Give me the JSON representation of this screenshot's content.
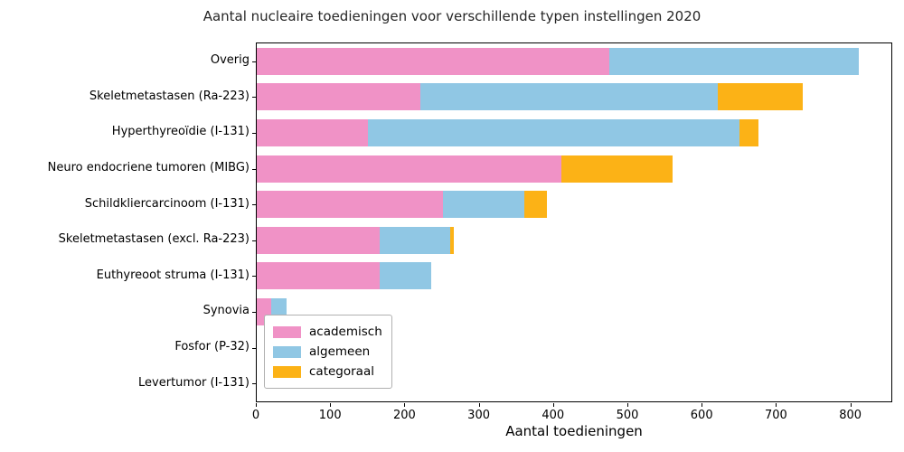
{
  "title": "Aantal nucleaire toedieningen voor verschillende typen instellingen 2020",
  "chart_data": {
    "type": "bar",
    "orientation": "horizontal",
    "stacked": true,
    "title": "Aantal nucleaire toedieningen voor verschillende typen instellingen 2020",
    "xlabel": "Aantal toedieningen",
    "ylabel": "",
    "categories": [
      "Overig",
      "Skeletmetastasen (Ra-223)",
      "Hyperthyreoïdie (I-131)",
      "Neuro endocriene tumoren (MIBG)",
      "Schildkliercarcinoom (I-131)",
      "Skeletmetastasen (excl. Ra-223)",
      "Euthyreoot struma (I-131)",
      "Synovia",
      "Fosfor (P-32)",
      "Levertumor (I-131)"
    ],
    "series": [
      {
        "name": "academisch",
        "color": "#F092C6",
        "values": [
          475,
          220,
          150,
          410,
          250,
          165,
          165,
          20,
          0,
          0
        ]
      },
      {
        "name": "algemeen",
        "color": "#90C7E4",
        "values": [
          335,
          400,
          500,
          0,
          110,
          95,
          70,
          20,
          0,
          0
        ]
      },
      {
        "name": "categoraal",
        "color": "#FCB216",
        "values": [
          0,
          115,
          25,
          150,
          30,
          5,
          0,
          0,
          0,
          0
        ]
      }
    ],
    "totals": [
      810,
      735,
      675,
      560,
      390,
      265,
      235,
      40,
      0,
      0
    ],
    "xlim": [
      0,
      854
    ],
    "xticks": [
      0,
      100,
      200,
      300,
      400,
      500,
      600,
      700,
      800
    ],
    "grid": false,
    "legend_position": "lower left inside",
    "legend_entries": [
      "academisch",
      "algemeen",
      "categoraal"
    ]
  },
  "colors": {
    "academisch": "#F092C6",
    "algemeen": "#90C7E4",
    "categoraal": "#FCB216",
    "spine": "#000000",
    "background": "#ffffff",
    "legend_border": "#b0b0b0"
  }
}
